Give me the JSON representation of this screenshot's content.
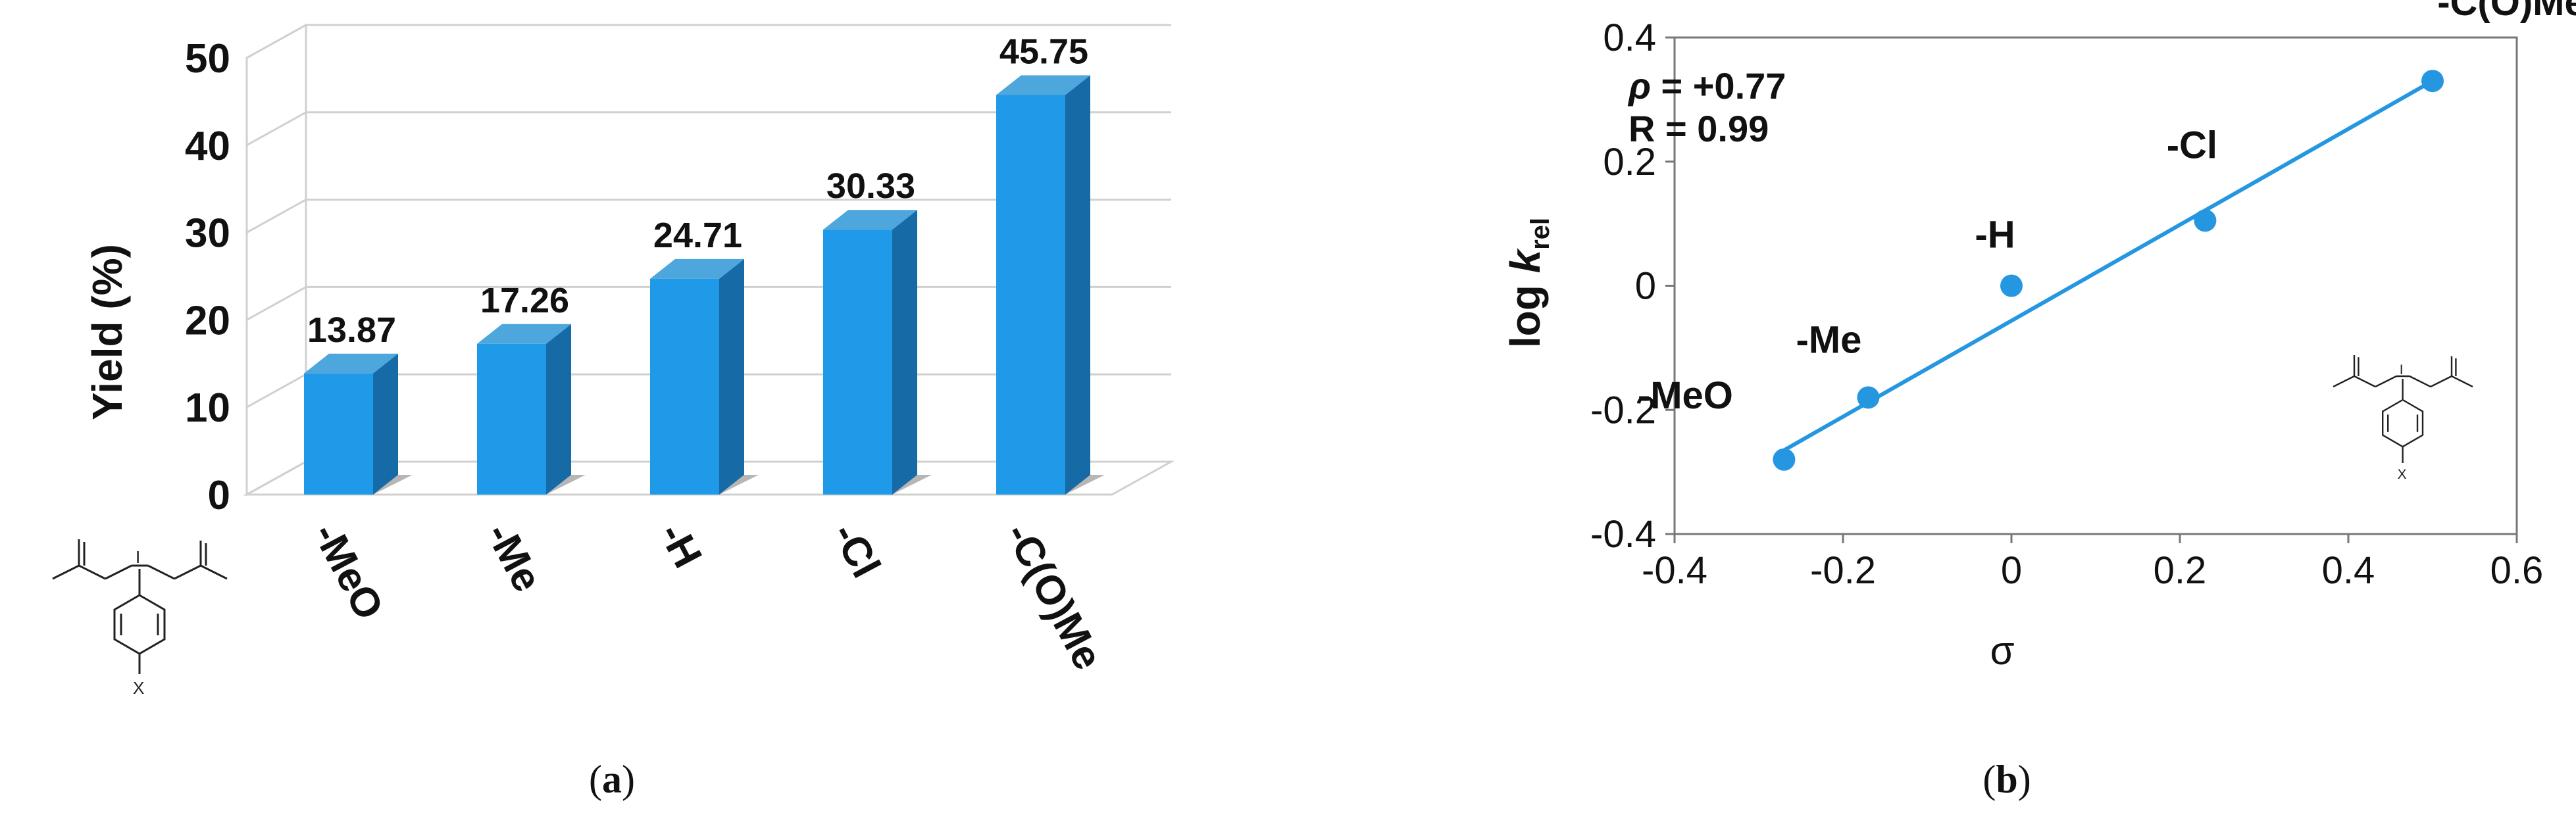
{
  "colors": {
    "bar_front": "#1f9ae8",
    "bar_side": "#166aa6",
    "bar_top": "#4da6dc",
    "point": "#2597e0",
    "fit_line": "#2597e0"
  },
  "chart_data": [
    {
      "type": "bar",
      "panel_label": "a",
      "ylabel": "Yield (%)",
      "categories": [
        "-MeO",
        "-Me",
        "-H",
        "-Cl",
        "-C(O)Me"
      ],
      "values": [
        13.87,
        17.26,
        24.71,
        30.33,
        45.75
      ],
      "value_labels": [
        "13.87",
        "17.26",
        "24.71",
        "30.33",
        "45.75"
      ],
      "ylim": [
        0,
        50
      ],
      "yticks": [
        0,
        10,
        20,
        30,
        40,
        50
      ],
      "ytick_labels": [
        "0",
        "10",
        "20",
        "30",
        "40",
        "50"
      ],
      "grid": true,
      "style": "3d",
      "molecule_label": "X"
    },
    {
      "type": "scatter",
      "panel_label": "b",
      "xlabel": "σ",
      "ylabel_main": "log ",
      "ylabel_italic": "k",
      "ylabel_sub": "rel",
      "xlim": [
        -0.4,
        0.6
      ],
      "ylim": [
        -0.4,
        0.4
      ],
      "xticks": [
        -0.4,
        -0.2,
        0,
        0.2,
        0.4,
        0.6
      ],
      "xtick_labels": [
        "-0.4",
        "-0.2",
        "0",
        "0.2",
        "0.4",
        "0.6"
      ],
      "yticks": [
        -0.4,
        -0.2,
        0,
        0.2,
        0.4
      ],
      "ytick_labels": [
        "-0.4",
        "-0.2",
        "0",
        "0.2",
        "0.4"
      ],
      "points": [
        {
          "label": "-MeO",
          "x": -0.27,
          "y": -0.28
        },
        {
          "label": "-Me",
          "x": -0.17,
          "y": -0.18
        },
        {
          "label": "-H",
          "x": 0.0,
          "y": 0.0
        },
        {
          "label": "-Cl",
          "x": 0.23,
          "y": 0.105
        },
        {
          "label": "-C(O)Me",
          "x": 0.5,
          "y": 0.33
        }
      ],
      "fit": {
        "x_start": -0.27,
        "y_start": -0.265,
        "x_end": 0.5,
        "y_end": 0.33
      },
      "rho_symbol": "ρ",
      "rho_text": " = +0.77",
      "r_text": "R = 0.99",
      "molecule_label": "X"
    }
  ]
}
